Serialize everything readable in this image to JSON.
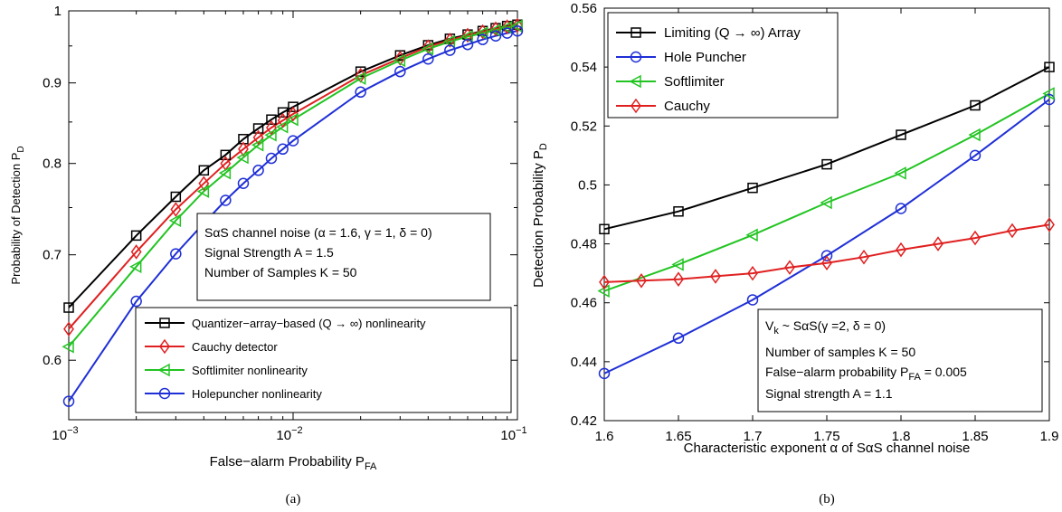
{
  "chart_data": [
    {
      "type": "line",
      "xscale": "log",
      "yscale": "log",
      "xlim": [
        0.001,
        0.1
      ],
      "ylim": [
        0.55,
        1
      ],
      "xlabel": "False−alarm Probability P",
      "xlabel_sub": "FA",
      "ylabel": "Probability of Detection P",
      "ylabel_sub": "D",
      "x_ticks": [
        0.001,
        0.01,
        0.1
      ],
      "x_tick_bases": [
        "10",
        "10",
        "10"
      ],
      "x_tick_exps": [
        "−3",
        "−2",
        "−1"
      ],
      "y_ticks": [
        0.6,
        0.7,
        0.8,
        0.9,
        1
      ],
      "y_tick_labels": [
        "0.6",
        "0.7",
        "0.8",
        "0.9",
        "1"
      ],
      "caption": "(a)",
      "annotation": [
        "SαS channel noise (α = 1.6, γ = 1, δ = 0)",
        "Signal Strength A = 1.5",
        "Number of Samples K = 50"
      ],
      "legend_position": "lower-right",
      "x": [
        0.001,
        0.002,
        0.003,
        0.004,
        0.005,
        0.006,
        0.007,
        0.008,
        0.009,
        0.01,
        0.02,
        0.03,
        0.04,
        0.05,
        0.06,
        0.07,
        0.08,
        0.09,
        0.1
      ],
      "series": [
        {
          "name": "Quantizer−array−based (Q → ∞) nonlinearity",
          "color": "#000000",
          "marker": "square",
          "values": [
            0.648,
            0.72,
            0.762,
            0.792,
            0.81,
            0.829,
            0.842,
            0.853,
            0.862,
            0.869,
            0.915,
            0.937,
            0.951,
            0.96,
            0.966,
            0.971,
            0.975,
            0.978,
            0.98
          ]
        },
        {
          "name": "Cauchy detector",
          "color": "#e02020",
          "marker": "diamond",
          "values": [
            0.628,
            0.703,
            0.748,
            0.777,
            0.8,
            0.817,
            0.831,
            0.843,
            0.852,
            0.86,
            0.91,
            0.933,
            0.949,
            0.958,
            0.965,
            0.97,
            0.974,
            0.977,
            0.979
          ]
        },
        {
          "name": "Softlimiter nonlinearity",
          "color": "#22c422",
          "marker": "triangle-left",
          "values": [
            0.612,
            0.688,
            0.736,
            0.768,
            0.789,
            0.807,
            0.822,
            0.834,
            0.844,
            0.853,
            0.906,
            0.93,
            0.946,
            0.956,
            0.963,
            0.968,
            0.972,
            0.976,
            0.978
          ]
        },
        {
          "name": "Holepuncher nonlinearity",
          "color": "#1f2fd6",
          "marker": "circle",
          "values": [
            0.565,
            0.654,
            0.701,
            0.733,
            0.758,
            0.777,
            0.792,
            0.806,
            0.817,
            0.827,
            0.888,
            0.915,
            0.932,
            0.944,
            0.952,
            0.959,
            0.964,
            0.968,
            0.971
          ]
        }
      ]
    },
    {
      "type": "line",
      "xlim": [
        1.6,
        1.9
      ],
      "ylim": [
        0.42,
        0.56
      ],
      "xlabel": "Characteristic exponent α of SαS channel noise",
      "ylabel": "Detection Probability  P",
      "ylabel_sub": "D",
      "x_ticks": [
        1.6,
        1.65,
        1.7,
        1.75,
        1.8,
        1.85,
        1.9
      ],
      "x_tick_labels": [
        "1.6",
        "1.65",
        "1.7",
        "1.75",
        "1.8",
        "1.85",
        "1.9"
      ],
      "y_ticks": [
        0.42,
        0.44,
        0.46,
        0.48,
        0.5,
        0.52,
        0.54,
        0.56
      ],
      "y_tick_labels": [
        "0.42",
        "0.44",
        "0.46",
        "0.48",
        "0.5",
        "0.52",
        "0.54",
        "0.56"
      ],
      "caption": "(b)",
      "annotation_line1_prefix": "V",
      "annotation_line1_sub": "k",
      "annotation_line1_rest": " ~ SαS(γ =2, δ = 0)",
      "annotation": [
        "Number of samples K = 50"
      ],
      "annotation_fa_prefix": "False−alarm probability P",
      "annotation_fa_sub": "FA",
      "annotation_fa_rest": " = 0.005",
      "annotation_last": "Signal strength A = 1.1",
      "legend_position": "top-left",
      "series": [
        {
          "name": "Limiting (Q → ∞) Array",
          "color": "#000000",
          "marker": "square",
          "x": [
            1.6,
            1.65,
            1.7,
            1.75,
            1.8,
            1.85,
            1.9
          ],
          "values": [
            0.485,
            0.491,
            0.499,
            0.507,
            0.517,
            0.527,
            0.54
          ]
        },
        {
          "name": "Hole Puncher",
          "color": "#1f2fd6",
          "marker": "circle",
          "x": [
            1.6,
            1.65,
            1.7,
            1.75,
            1.8,
            1.85,
            1.9
          ],
          "values": [
            0.436,
            0.448,
            0.461,
            0.476,
            0.492,
            0.51,
            0.529
          ]
        },
        {
          "name": "Softlimiter",
          "color": "#22c422",
          "marker": "triangle-left",
          "x": [
            1.6,
            1.65,
            1.7,
            1.75,
            1.8,
            1.85,
            1.9
          ],
          "values": [
            0.464,
            0.473,
            0.483,
            0.494,
            0.504,
            0.517,
            0.531
          ]
        },
        {
          "name": "Cauchy",
          "color": "#e02020",
          "marker": "diamond",
          "x": [
            1.6,
            1.625,
            1.65,
            1.675,
            1.7,
            1.725,
            1.75,
            1.775,
            1.8,
            1.825,
            1.85,
            1.875,
            1.9
          ],
          "values": [
            0.467,
            0.4675,
            0.468,
            0.469,
            0.47,
            0.472,
            0.4735,
            0.4755,
            0.478,
            0.48,
            0.482,
            0.4845,
            0.4865
          ]
        }
      ]
    }
  ]
}
